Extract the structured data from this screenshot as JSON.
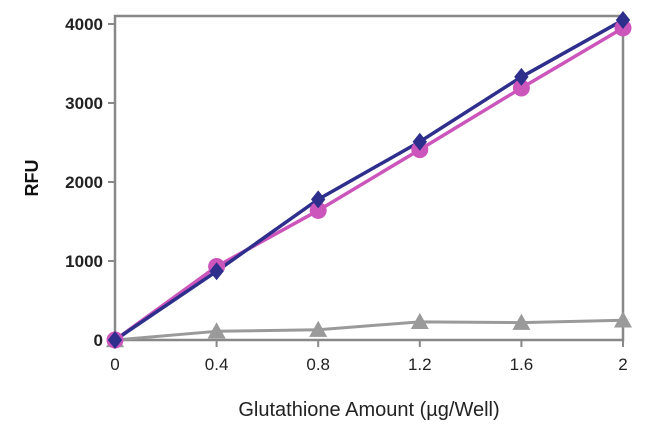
{
  "chart_data": {
    "type": "line",
    "title": "",
    "xlabel": "Glutathione Amount (µg/Well)",
    "ylabel": "RFU",
    "x": [
      0,
      0.4,
      0.8,
      1.2,
      1.6,
      2
    ],
    "x_tick_labels": [
      "0",
      "0.4",
      "0.8",
      "1.2",
      "1.6",
      "2"
    ],
    "y_tick_values": [
      0,
      1000,
      2000,
      3000,
      4000
    ],
    "y_tick_labels": [
      "0",
      "1000",
      "2000",
      "3000",
      "4000"
    ],
    "xlim": [
      0,
      2
    ],
    "ylim": [
      0,
      4000
    ],
    "grid": false,
    "legend": "none",
    "series": [
      {
        "values": [
          0,
          870,
          1780,
          2510,
          3330,
          4050
        ],
        "color": "#2e2e8c",
        "marker": "diamond"
      },
      {
        "values": [
          0,
          930,
          1640,
          2410,
          3190,
          3950
        ],
        "color": "#cc55bb",
        "marker": "circle"
      },
      {
        "values": [
          0,
          110,
          130,
          230,
          220,
          250
        ],
        "color": "#9a9a9a",
        "marker": "triangle"
      }
    ]
  }
}
